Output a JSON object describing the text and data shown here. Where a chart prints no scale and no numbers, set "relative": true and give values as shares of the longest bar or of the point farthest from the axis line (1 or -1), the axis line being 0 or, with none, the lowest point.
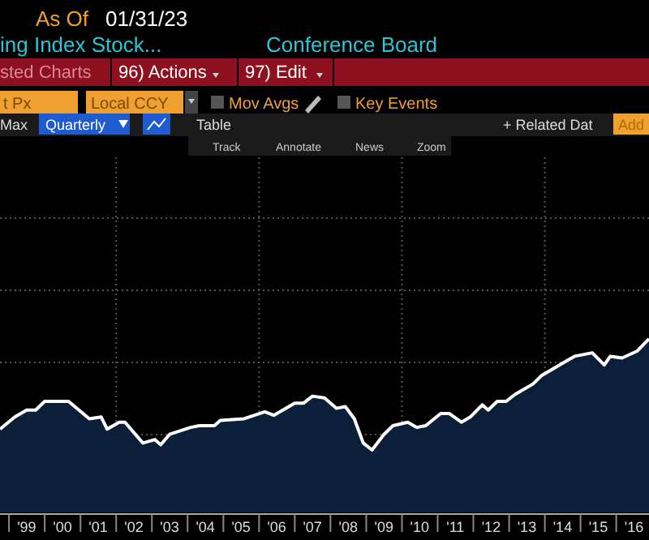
{
  "chart_data": {
    "type": "area",
    "relative": true,
    "color": "#0b1f3a",
    "grid": true,
    "annotations": [
      "As Of",
      "01/31/23",
      "ing Index Stock...",
      "Conference Board",
      "sted Charts",
      "96) Actions",
      "97) Edit",
      "t Px",
      "Local CCY",
      "Mov Avgs",
      "Key Events",
      "Max",
      "Quarterly",
      "Table",
      "+ Related Dat",
      "Add",
      "Track",
      "Annotate",
      "News",
      "Zoom"
    ],
    "x": [
      "1998-10",
      "1999-03",
      "1999-07",
      "1999-10",
      "2000-01",
      "2000-09",
      "2001-04",
      "2001-08",
      "2001-10",
      "2002-02",
      "2002-04",
      "2002-10",
      "2003-02",
      "2003-04",
      "2003-07",
      "2004-02",
      "2004-05",
      "2004-10",
      "2004-12",
      "2005-08",
      "2006-03",
      "2006-06",
      "2007-01",
      "2007-04",
      "2007-07",
      "2007-11",
      "2008-03",
      "2008-06",
      "2008-09",
      "2008-12",
      "2009-03",
      "2009-07",
      "2009-10",
      "2010-03",
      "2010-06",
      "2010-09",
      "2011-02",
      "2011-05",
      "2011-09",
      "2011-12",
      "2012-04",
      "2012-06",
      "2012-09",
      "2012-12",
      "2013-03",
      "2013-09",
      "2013-12",
      "2014-07",
      "2014-11",
      "2015-05",
      "2015-09",
      "2015-11",
      "2016-03",
      "2016-08",
      "2016-12"
    ],
    "values": [
      0.48,
      0.55,
      0.59,
      0.59,
      0.64,
      0.64,
      0.54,
      0.55,
      0.48,
      0.52,
      0.52,
      0.4,
      0.42,
      0.39,
      0.45,
      0.49,
      0.5,
      0.5,
      0.53,
      0.54,
      0.58,
      0.56,
      0.63,
      0.63,
      0.67,
      0.66,
      0.6,
      0.61,
      0.54,
      0.4,
      0.36,
      0.45,
      0.5,
      0.52,
      0.49,
      0.5,
      0.57,
      0.57,
      0.52,
      0.55,
      0.62,
      0.59,
      0.64,
      0.64,
      0.68,
      0.74,
      0.79,
      0.86,
      0.9,
      0.92,
      0.85,
      0.9,
      0.89,
      0.93,
      1.0
    ],
    "xlim": [
      "1998-10",
      "2016-12"
    ],
    "xticks": [
      {
        "value": "1999-07",
        "label": "'99"
      },
      {
        "value": "2000-07",
        "label": "'00"
      },
      {
        "value": "2001-07",
        "label": "'01"
      },
      {
        "value": "2002-07",
        "label": "'02"
      },
      {
        "value": "2003-07",
        "label": "'03"
      },
      {
        "value": "2004-07",
        "label": "'04"
      },
      {
        "value": "2005-07",
        "label": "'05"
      },
      {
        "value": "2006-07",
        "label": "'06"
      },
      {
        "value": "2007-07",
        "label": "'07"
      },
      {
        "value": "2008-07",
        "label": "'08"
      },
      {
        "value": "2009-07",
        "label": "'09"
      },
      {
        "value": "2010-07",
        "label": "'10"
      },
      {
        "value": "2011-07",
        "label": "'11"
      },
      {
        "value": "2012-07",
        "label": "'12"
      },
      {
        "value": "2013-07",
        "label": "'13"
      },
      {
        "value": "2014-07",
        "label": "'14"
      },
      {
        "value": "2015-07",
        "label": "'15"
      },
      {
        "value": "2016-07",
        "label": "'16"
      }
    ]
  }
}
